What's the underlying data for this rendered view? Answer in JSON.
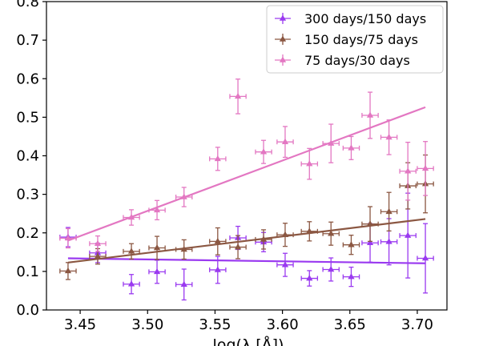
{
  "chart_data": {
    "type": "scatter",
    "title": "",
    "xlabel": "log(λ    [Å])",
    "ylabel": "",
    "xlim": [
      3.425,
      3.722
    ],
    "ylim": [
      0.0,
      0.8
    ],
    "xticks": [
      3.45,
      3.5,
      3.55,
      3.6,
      3.65,
      3.7
    ],
    "yticks": [
      0.0,
      0.1,
      0.2,
      0.3,
      0.4,
      0.5,
      0.6,
      0.7,
      0.8
    ],
    "xtick_labels": [
      "3.45",
      "3.50",
      "3.55",
      "3.60",
      "3.65",
      "3.70"
    ],
    "ytick_labels": [
      "0.0",
      "0.1",
      "0.2",
      "0.3",
      "0.4",
      "0.5",
      "0.6",
      "0.7",
      "0.8"
    ],
    "grid": false,
    "legend_position": "upper right",
    "series": [
      {
        "name": "300 days/150 days",
        "color": "#9a3af0",
        "marker": "triangle",
        "x": [
          3.441,
          3.463,
          3.488,
          3.507,
          3.527,
          3.552,
          3.567,
          3.586,
          3.602,
          3.62,
          3.636,
          3.651,
          3.665,
          3.679,
          3.693,
          3.706
        ],
        "y": [
          0.189,
          0.148,
          0.067,
          0.099,
          0.066,
          0.104,
          0.187,
          0.176,
          0.117,
          0.082,
          0.105,
          0.086,
          0.174,
          0.177,
          0.193,
          0.134
        ],
        "xerr": [
          0.006,
          0.006,
          0.006,
          0.006,
          0.006,
          0.006,
          0.006,
          0.006,
          0.006,
          0.006,
          0.006,
          0.006,
          0.006,
          0.006,
          0.006,
          0.006
        ],
        "yerr": [
          0.025,
          0.025,
          0.025,
          0.03,
          0.04,
          0.035,
          0.03,
          0.025,
          0.03,
          0.02,
          0.03,
          0.025,
          0.05,
          0.06,
          0.11,
          0.09
        ],
        "fit": {
          "x": [
            3.441,
            3.706
          ],
          "y": [
            0.134,
            0.121
          ]
        }
      },
      {
        "name": "150 days/75 days",
        "color": "#8b5742",
        "marker": "triangle",
        "x": [
          3.441,
          3.463,
          3.488,
          3.507,
          3.527,
          3.552,
          3.567,
          3.586,
          3.602,
          3.62,
          3.636,
          3.651,
          3.665,
          3.679,
          3.693,
          3.706
        ],
        "y": [
          0.101,
          0.139,
          0.152,
          0.161,
          0.157,
          0.178,
          0.163,
          0.183,
          0.195,
          0.204,
          0.198,
          0.169,
          0.223,
          0.255,
          0.322,
          0.327
        ],
        "xerr": [
          0.006,
          0.006,
          0.006,
          0.006,
          0.006,
          0.006,
          0.006,
          0.006,
          0.006,
          0.006,
          0.006,
          0.006,
          0.006,
          0.006,
          0.006,
          0.006
        ],
        "yerr": [
          0.022,
          0.02,
          0.02,
          0.03,
          0.025,
          0.035,
          0.03,
          0.025,
          0.03,
          0.025,
          0.03,
          0.025,
          0.045,
          0.05,
          0.06,
          0.075
        ],
        "fit": {
          "x": [
            3.441,
            3.706
          ],
          "y": [
            0.123,
            0.236
          ]
        }
      },
      {
        "name": "75 days/30 days",
        "color": "#e377c2",
        "marker": "triangle",
        "x": [
          3.441,
          3.463,
          3.488,
          3.507,
          3.527,
          3.552,
          3.567,
          3.586,
          3.602,
          3.62,
          3.636,
          3.651,
          3.665,
          3.679,
          3.693,
          3.706
        ],
        "y": [
          0.186,
          0.172,
          0.24,
          0.259,
          0.293,
          0.392,
          0.554,
          0.41,
          0.436,
          0.379,
          0.432,
          0.42,
          0.505,
          0.448,
          0.36,
          0.367
        ],
        "xerr": [
          0.006,
          0.006,
          0.006,
          0.006,
          0.006,
          0.006,
          0.006,
          0.006,
          0.006,
          0.006,
          0.006,
          0.006,
          0.006,
          0.006,
          0.006,
          0.006
        ],
        "yerr": [
          0.025,
          0.02,
          0.02,
          0.025,
          0.025,
          0.03,
          0.045,
          0.03,
          0.04,
          0.04,
          0.05,
          0.03,
          0.06,
          0.045,
          0.075,
          0.07
        ],
        "fit": {
          "x": [
            3.441,
            3.706
          ],
          "y": [
            0.18,
            0.526
          ]
        }
      }
    ]
  }
}
